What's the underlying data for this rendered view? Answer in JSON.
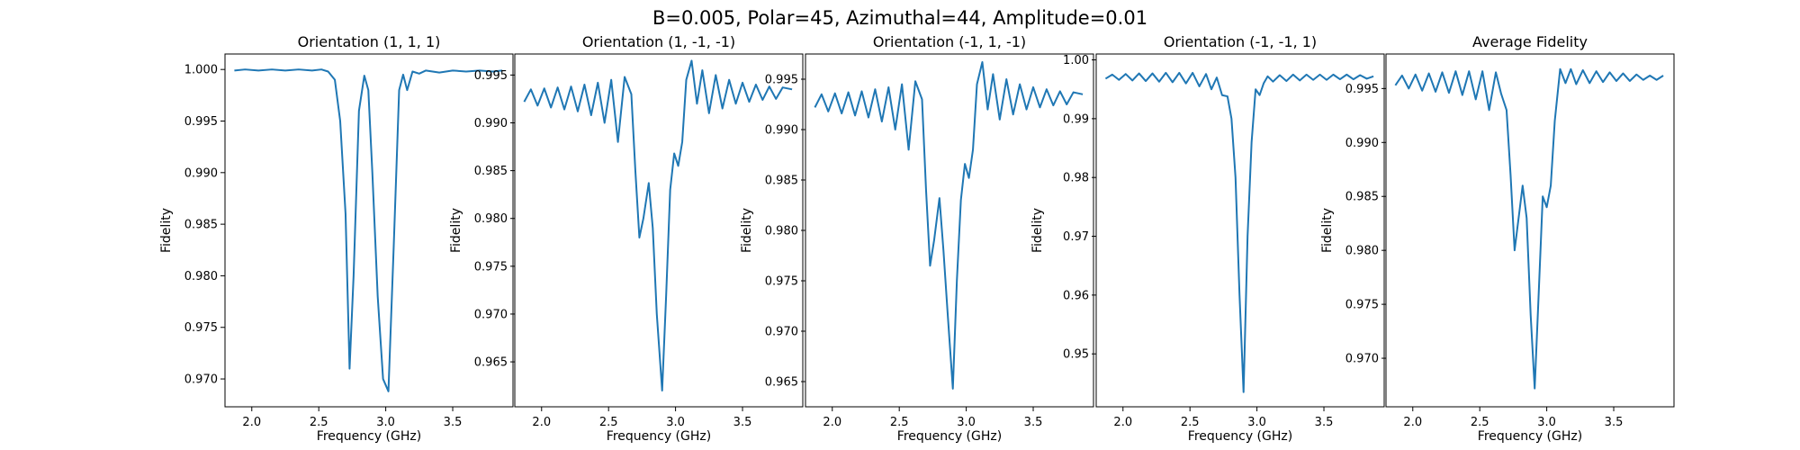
{
  "figure": {
    "suptitle": "B=0.005, Polar=45, Azimuthal=44, Amplitude=0.01"
  },
  "colors": {
    "line": "#1f77b4",
    "axes": "#000000",
    "background": "#ffffff"
  },
  "chart_data": [
    {
      "type": "line",
      "title": "Orientation (1, 1, 1)",
      "xlabel": "Frequency (GHz)",
      "ylabel": "Fidelity",
      "xlim": [
        1.8,
        3.95
      ],
      "ylim": [
        0.9673,
        1.0015
      ],
      "xticks": [
        2.0,
        2.5,
        3.0,
        3.5
      ],
      "xtick_labels": [
        "2.0",
        "2.5",
        "3.0",
        "3.5"
      ],
      "yticks": [
        0.97,
        0.975,
        0.98,
        0.985,
        0.99,
        0.995,
        1.0
      ],
      "ytick_labels": [
        "0.970",
        "0.975",
        "0.980",
        "0.985",
        "0.990",
        "0.995",
        "1.000"
      ],
      "grid": false,
      "series": [
        {
          "x": [
            1.87,
            1.95,
            2.05,
            2.15,
            2.25,
            2.35,
            2.45,
            2.52,
            2.57,
            2.62,
            2.66,
            2.7,
            2.73,
            2.76,
            2.8,
            2.84,
            2.87,
            2.9,
            2.94,
            2.98,
            3.02,
            3.06,
            3.1,
            3.13,
            3.16,
            3.2,
            3.25,
            3.3,
            3.4,
            3.5,
            3.6,
            3.7,
            3.8,
            3.87
          ],
          "y": [
            0.9999,
            1.0,
            0.9999,
            1.0,
            0.9999,
            1.0,
            0.9999,
            1.0,
            0.9998,
            0.999,
            0.995,
            0.986,
            0.971,
            0.98,
            0.996,
            0.9994,
            0.998,
            0.99,
            0.978,
            0.97,
            0.9688,
            0.983,
            0.998,
            0.9995,
            0.998,
            0.9998,
            0.9996,
            0.9999,
            0.9997,
            0.9999,
            0.9998,
            0.9999,
            0.9998,
            0.9999
          ]
        }
      ]
    },
    {
      "type": "line",
      "title": "Orientation (1, -1, -1)",
      "xlabel": "Frequency (GHz)",
      "ylabel": "Fidelity",
      "xlim": [
        1.8,
        3.95
      ],
      "ylim": [
        0.9603,
        0.9972
      ],
      "xticks": [
        2.0,
        2.5,
        3.0,
        3.5
      ],
      "xtick_labels": [
        "2.0",
        "2.5",
        "3.0",
        "3.5"
      ],
      "yticks": [
        0.965,
        0.97,
        0.975,
        0.98,
        0.985,
        0.99,
        0.995
      ],
      "ytick_labels": [
        "0.965",
        "0.970",
        "0.975",
        "0.980",
        "0.985",
        "0.990",
        "0.995"
      ],
      "grid": false,
      "series": [
        {
          "x": [
            1.87,
            1.92,
            1.97,
            2.02,
            2.07,
            2.12,
            2.17,
            2.22,
            2.27,
            2.32,
            2.37,
            2.42,
            2.47,
            2.52,
            2.57,
            2.62,
            2.67,
            2.7,
            2.73,
            2.76,
            2.8,
            2.83,
            2.86,
            2.9,
            2.93,
            2.96,
            2.99,
            3.02,
            3.05,
            3.08,
            3.12,
            3.16,
            3.2,
            3.25,
            3.3,
            3.35,
            3.4,
            3.45,
            3.5,
            3.55,
            3.6,
            3.65,
            3.7,
            3.75,
            3.8,
            3.87
          ],
          "y": [
            0.9922,
            0.9935,
            0.9918,
            0.9936,
            0.9916,
            0.9937,
            0.9914,
            0.9938,
            0.9912,
            0.994,
            0.9908,
            0.9942,
            0.99,
            0.9945,
            0.988,
            0.9948,
            0.993,
            0.985,
            0.978,
            0.98,
            0.9837,
            0.979,
            0.97,
            0.962,
            0.972,
            0.983,
            0.9868,
            0.9855,
            0.988,
            0.9945,
            0.9965,
            0.992,
            0.9955,
            0.991,
            0.995,
            0.9915,
            0.9945,
            0.992,
            0.9942,
            0.9922,
            0.994,
            0.9924,
            0.9938,
            0.9925,
            0.9937,
            0.9935
          ]
        }
      ]
    },
    {
      "type": "line",
      "title": "Orientation (-1, 1, -1)",
      "xlabel": "Frequency (GHz)",
      "ylabel": "Fidelity",
      "xlim": [
        1.8,
        3.95
      ],
      "ylim": [
        0.9625,
        0.9975
      ],
      "xticks": [
        2.0,
        2.5,
        3.0,
        3.5
      ],
      "xtick_labels": [
        "2.0",
        "2.5",
        "3.0",
        "3.5"
      ],
      "yticks": [
        0.965,
        0.97,
        0.975,
        0.98,
        0.985,
        0.99,
        0.995
      ],
      "ytick_labels": [
        "0.965",
        "0.970",
        "0.975",
        "0.980",
        "0.985",
        "0.990",
        "0.995"
      ],
      "grid": false,
      "series": [
        {
          "x": [
            1.87,
            1.92,
            1.97,
            2.02,
            2.07,
            2.12,
            2.17,
            2.22,
            2.27,
            2.32,
            2.37,
            2.42,
            2.47,
            2.52,
            2.57,
            2.62,
            2.67,
            2.7,
            2.73,
            2.76,
            2.8,
            2.83,
            2.86,
            2.9,
            2.93,
            2.96,
            2.99,
            3.02,
            3.05,
            3.08,
            3.12,
            3.16,
            3.2,
            3.25,
            3.3,
            3.35,
            3.4,
            3.45,
            3.5,
            3.55,
            3.6,
            3.65,
            3.7,
            3.75,
            3.8,
            3.87
          ],
          "y": [
            0.9922,
            0.9935,
            0.9918,
            0.9936,
            0.9916,
            0.9937,
            0.9914,
            0.9938,
            0.9912,
            0.994,
            0.9908,
            0.9942,
            0.99,
            0.9945,
            0.988,
            0.9948,
            0.993,
            0.984,
            0.9765,
            0.979,
            0.9832,
            0.978,
            0.972,
            0.9643,
            0.975,
            0.983,
            0.9866,
            0.9852,
            0.988,
            0.9945,
            0.9967,
            0.992,
            0.9955,
            0.991,
            0.995,
            0.9915,
            0.9945,
            0.992,
            0.9942,
            0.9922,
            0.994,
            0.9924,
            0.9938,
            0.9925,
            0.9937,
            0.9935
          ]
        }
      ]
    },
    {
      "type": "line",
      "title": "Orientation (-1, -1, 1)",
      "xlabel": "Frequency (GHz)",
      "ylabel": "Fidelity",
      "xlim": [
        1.8,
        3.95
      ],
      "ylim": [
        0.941,
        1.001
      ],
      "xticks": [
        2.0,
        2.5,
        3.0,
        3.5
      ],
      "xtick_labels": [
        "2.0",
        "2.5",
        "3.0",
        "3.5"
      ],
      "yticks": [
        0.95,
        0.96,
        0.97,
        0.98,
        0.99,
        1.0
      ],
      "ytick_labels": [
        "0.95",
        "0.96",
        "0.97",
        "0.98",
        "0.99",
        "1.00"
      ],
      "grid": false,
      "series": [
        {
          "x": [
            1.87,
            1.92,
            1.97,
            2.02,
            2.07,
            2.12,
            2.17,
            2.22,
            2.27,
            2.32,
            2.37,
            2.42,
            2.47,
            2.52,
            2.57,
            2.62,
            2.66,
            2.7,
            2.74,
            2.78,
            2.81,
            2.84,
            2.87,
            2.9,
            2.93,
            2.96,
            2.99,
            3.02,
            3.05,
            3.08,
            3.12,
            3.17,
            3.22,
            3.27,
            3.32,
            3.37,
            3.42,
            3.47,
            3.52,
            3.57,
            3.62,
            3.67,
            3.72,
            3.77,
            3.82,
            3.87
          ],
          "y": [
            0.9968,
            0.9975,
            0.9966,
            0.9976,
            0.9965,
            0.9977,
            0.9964,
            0.9977,
            0.9963,
            0.9978,
            0.9962,
            0.9978,
            0.996,
            0.9978,
            0.9955,
            0.9976,
            0.995,
            0.997,
            0.994,
            0.9938,
            0.99,
            0.98,
            0.96,
            0.9435,
            0.97,
            0.986,
            0.995,
            0.994,
            0.996,
            0.9972,
            0.9963,
            0.9974,
            0.9964,
            0.9975,
            0.9965,
            0.9975,
            0.9966,
            0.9975,
            0.9966,
            0.9975,
            0.9967,
            0.9975,
            0.9967,
            0.9974,
            0.9968,
            0.9972
          ]
        }
      ]
    },
    {
      "type": "line",
      "title": "Average Fidelity",
      "xlabel": "Frequency (GHz)",
      "ylabel": "Fidelity",
      "xlim": [
        1.8,
        3.95
      ],
      "ylim": [
        0.9655,
        0.9982
      ],
      "xticks": [
        2.0,
        2.5,
        3.0,
        3.5
      ],
      "xtick_labels": [
        "2.0",
        "2.5",
        "3.0",
        "3.5"
      ],
      "yticks": [
        0.97,
        0.975,
        0.98,
        0.985,
        0.99,
        0.995
      ],
      "ytick_labels": [
        "0.970",
        "0.975",
        "0.980",
        "0.985",
        "0.990",
        "0.995"
      ],
      "grid": false,
      "series": [
        {
          "x": [
            1.87,
            1.92,
            1.97,
            2.02,
            2.07,
            2.12,
            2.17,
            2.22,
            2.27,
            2.32,
            2.37,
            2.42,
            2.47,
            2.52,
            2.57,
            2.62,
            2.66,
            2.7,
            2.73,
            2.76,
            2.79,
            2.82,
            2.85,
            2.88,
            2.91,
            2.94,
            2.97,
            3.0,
            3.03,
            3.06,
            3.1,
            3.14,
            3.18,
            3.22,
            3.27,
            3.32,
            3.37,
            3.42,
            3.47,
            3.52,
            3.57,
            3.62,
            3.67,
            3.72,
            3.77,
            3.82,
            3.87
          ],
          "y": [
            0.9953,
            0.9962,
            0.995,
            0.9963,
            0.9948,
            0.9964,
            0.9947,
            0.9965,
            0.9946,
            0.9966,
            0.9944,
            0.9966,
            0.994,
            0.9966,
            0.993,
            0.9965,
            0.9945,
            0.993,
            0.987,
            0.98,
            0.983,
            0.986,
            0.983,
            0.974,
            0.9672,
            0.976,
            0.985,
            0.984,
            0.986,
            0.992,
            0.9968,
            0.9955,
            0.9968,
            0.9954,
            0.9967,
            0.9955,
            0.9966,
            0.9956,
            0.9965,
            0.9957,
            0.9964,
            0.9957,
            0.9963,
            0.9958,
            0.9962,
            0.9958,
            0.9962
          ]
        }
      ]
    }
  ]
}
